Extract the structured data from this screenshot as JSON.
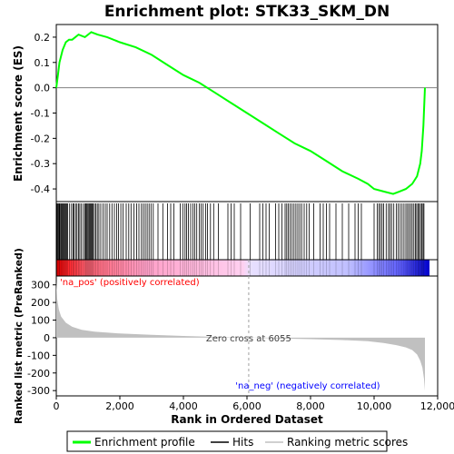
{
  "chart_data": {
    "type": "line",
    "title": "Enrichment plot: STK33_SKM_DN",
    "xlabel": "Rank in Ordered Dataset",
    "ylabel_top": "Enrichment score (ES)",
    "ylabel_bottom": "Ranked list metric (PreRanked)",
    "xlim": [
      0,
      12000
    ],
    "ylim_top": [
      -0.45,
      0.25
    ],
    "ylim_bottom": [
      -330,
      350
    ],
    "x_ticks": [
      0,
      2000,
      4000,
      6000,
      8000,
      10000,
      12000
    ],
    "x_tick_labels": [
      "0",
      "2,000",
      "4,000",
      "6,000",
      "8,000",
      "10,000",
      "12,000"
    ],
    "y_ticks_top": [
      0.2,
      0.1,
      0.0,
      -0.1,
      -0.2,
      -0.3,
      -0.4
    ],
    "y_tick_labels_top": [
      "0.2",
      "0.1",
      "0.0",
      "-0.1",
      "-0.2",
      "-0.3",
      "-0.4"
    ],
    "y_ticks_bottom": [
      300,
      200,
      100,
      0,
      -100,
      -200,
      -300
    ],
    "y_tick_labels_bottom": [
      "300",
      "200",
      "100",
      "0",
      "-100",
      "-200",
      "-300"
    ],
    "n_genes": 11600,
    "zero_cross": 6055,
    "zero_cross_label": "Zero cross at 6055",
    "pos_label": "'na_pos' (positively correlated)",
    "neg_label": "'na_neg' (negatively correlated)",
    "series": [
      {
        "name": "Enrichment profile",
        "color": "#00ff00",
        "x": [
          0,
          50,
          100,
          200,
          300,
          400,
          500,
          700,
          900,
          1100,
          1300,
          1600,
          2000,
          2500,
          3000,
          3500,
          4000,
          4500,
          5000,
          5500,
          6000,
          6500,
          7000,
          7500,
          8000,
          8500,
          9000,
          9500,
          9800,
          10000,
          10300,
          10600,
          10800,
          11000,
          11200,
          11350,
          11450,
          11500,
          11550,
          11600
        ],
        "y": [
          0.0,
          0.05,
          0.1,
          0.15,
          0.18,
          0.19,
          0.19,
          0.21,
          0.2,
          0.22,
          0.21,
          0.2,
          0.18,
          0.16,
          0.13,
          0.09,
          0.05,
          0.02,
          -0.02,
          -0.06,
          -0.1,
          -0.14,
          -0.18,
          -0.22,
          -0.25,
          -0.29,
          -0.33,
          -0.36,
          -0.38,
          -0.4,
          -0.41,
          -0.42,
          -0.41,
          -0.4,
          -0.38,
          -0.35,
          -0.3,
          -0.25,
          -0.15,
          0.0
        ]
      },
      {
        "name": "Hits",
        "color": "#000000"
      },
      {
        "name": "Ranking metric scores",
        "color": "#c0c0c0",
        "x": [
          0,
          30,
          80,
          150,
          300,
          500,
          800,
          1200,
          2000,
          3000,
          4000,
          5000,
          6055,
          7000,
          8000,
          9000,
          9800,
          10300,
          10700,
          11000,
          11200,
          11350,
          11450,
          11520,
          11570,
          11600
        ],
        "y": [
          320,
          220,
          160,
          120,
          85,
          62,
          45,
          34,
          24,
          16,
          10,
          5,
          0,
          -4,
          -8,
          -13,
          -20,
          -30,
          -42,
          -55,
          -70,
          -95,
          -130,
          -170,
          -230,
          -300
        ]
      }
    ],
    "legend_entries": [
      "Enrichment profile",
      "Hits",
      "Ranking metric scores"
    ],
    "hits": [
      20,
      45,
      70,
      95,
      110,
      140,
      165,
      190,
      215,
      240,
      270,
      300,
      330,
      360,
      420,
      480,
      530,
      560,
      610,
      650,
      700,
      740,
      790,
      850,
      900,
      930,
      960,
      990,
      1010,
      1040,
      1070,
      1100,
      1130,
      1160,
      1200,
      1240,
      1290,
      1340,
      1400,
      1470,
      1540,
      1600,
      1680,
      1750,
      1830,
      1900,
      1960,
      2030,
      2100,
      2200,
      2280,
      2350,
      2440,
      2530,
      2600,
      2680,
      2740,
      2800,
      2860,
      2920,
      2980,
      3050,
      3200,
      3350,
      3500,
      3600,
      3700,
      3900,
      3980,
      4050,
      4100,
      4160,
      4230,
      4300,
      4360,
      4420,
      4500,
      4560,
      4620,
      4700,
      4760,
      4850,
      4950,
      5100,
      5400,
      5500,
      5600,
      5800,
      6100,
      6400,
      6500,
      6600,
      6700,
      6900,
      7000,
      7100,
      7200,
      7250,
      7300,
      7360,
      7420,
      7480,
      7540,
      7600,
      7660,
      7720,
      7800,
      7880,
      7960,
      8100,
      8300,
      8400,
      8500,
      8600,
      8800,
      9000,
      9200,
      9400,
      9500,
      9600,
      10000,
      10100,
      10150,
      10200,
      10250,
      10300,
      10380,
      10450,
      10500,
      10550,
      10620,
      10700,
      10760,
      10820,
      10880,
      10940,
      11000,
      11050,
      11100,
      11150,
      11200,
      11250,
      11300,
      11340,
      11380,
      11420,
      11460,
      11500,
      11540,
      11570
    ]
  }
}
